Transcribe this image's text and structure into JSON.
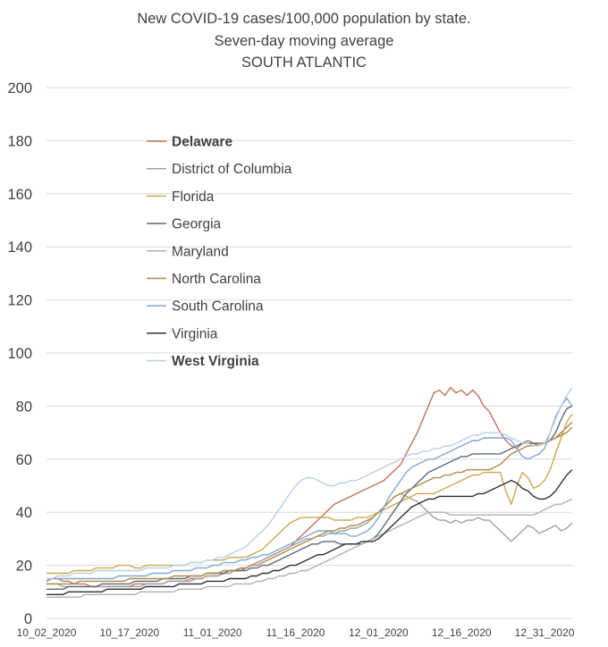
{
  "chart_data": {
    "type": "line",
    "title": "New COVID-19 cases/100,000 population by state.",
    "subtitle": "Seven-day moving average",
    "region": "SOUTH ATLANTIC",
    "xlabel": "",
    "ylabel": "",
    "ylim": [
      0,
      200
    ],
    "yticks": [
      0,
      20,
      40,
      60,
      80,
      100,
      120,
      140,
      160,
      180,
      200
    ],
    "x_tick_labels": [
      "10_02_2020",
      "10_17_2020",
      "11_01_2020",
      "11_16_2020",
      "12_01_2020",
      "12_16_2020",
      "12_31_2020"
    ],
    "x_tick_days": [
      0,
      15,
      30,
      45,
      60,
      75,
      90
    ],
    "x_start": "2020-10-02",
    "x_end": "2021-01-05",
    "grid": "horizontal",
    "legend_placement": "upper-left",
    "series": [
      {
        "name": "Delaware",
        "color": "#c0735a",
        "bold": true,
        "values": [
          14,
          15,
          15,
          14,
          14,
          13,
          13,
          13,
          12,
          12,
          12,
          12,
          12,
          12,
          12,
          12,
          13,
          13,
          13,
          13,
          13,
          13,
          14,
          14,
          14,
          14,
          15,
          15,
          15,
          16,
          16,
          16,
          17,
          17,
          18,
          18,
          19,
          20,
          21,
          22,
          23,
          24,
          25,
          26,
          27,
          29,
          31,
          33,
          35,
          37,
          39,
          41,
          43,
          44,
          45,
          46,
          47,
          48,
          49,
          50,
          51,
          52,
          54,
          56,
          58,
          62,
          66,
          70,
          75,
          80,
          85,
          86,
          84,
          87,
          85,
          86,
          84,
          86,
          84,
          80,
          78,
          74,
          70,
          67,
          65,
          64,
          66,
          67,
          66,
          65,
          66,
          67,
          68,
          70,
          72,
          74
        ]
      },
      {
        "name": "District of Columbia",
        "color": "#a0a0a0",
        "bold": false,
        "values": [
          13,
          13,
          13,
          12,
          12,
          12,
          12,
          12,
          12,
          12,
          12,
          12,
          12,
          12,
          12,
          12,
          12,
          12,
          13,
          13,
          13,
          13,
          14,
          14,
          14,
          14,
          14,
          15,
          15,
          16,
          16,
          16,
          17,
          17,
          18,
          19,
          19,
          20,
          21,
          22,
          23,
          24,
          25,
          26,
          27,
          28,
          29,
          30,
          30,
          31,
          31,
          32,
          32,
          33,
          33,
          34,
          34,
          35,
          36,
          38,
          40,
          42,
          44,
          46,
          47,
          46,
          45,
          44,
          42,
          40,
          38,
          37,
          37,
          36,
          37,
          36,
          37,
          37,
          38,
          37,
          37,
          35,
          33,
          31,
          29,
          31,
          33,
          35,
          34,
          32,
          33,
          34,
          35,
          33,
          34,
          36
        ]
      },
      {
        "name": "Florida",
        "color": "#c9a94a",
        "bold": false,
        "values": [
          17,
          17,
          17,
          17,
          17,
          18,
          18,
          18,
          18,
          19,
          19,
          19,
          19,
          20,
          20,
          20,
          19,
          19,
          20,
          20,
          20,
          20,
          20,
          20,
          20,
          20,
          21,
          21,
          21,
          22,
          22,
          22,
          22,
          23,
          23,
          23,
          23,
          24,
          25,
          26,
          28,
          30,
          32,
          34,
          36,
          37,
          38,
          38,
          38,
          38,
          38,
          38,
          37,
          37,
          37,
          37,
          38,
          38,
          38,
          39,
          40,
          41,
          42,
          43,
          44,
          45,
          46,
          47,
          47,
          47,
          47,
          48,
          49,
          50,
          51,
          52,
          53,
          54,
          54,
          55,
          55,
          55,
          55,
          48,
          43,
          50,
          55,
          53,
          49,
          50,
          52,
          56,
          62,
          68,
          74,
          77
        ]
      },
      {
        "name": "Georgia",
        "color": "#5a6a7a",
        "bold": false,
        "values": [
          11,
          11,
          11,
          11,
          12,
          12,
          12,
          12,
          12,
          12,
          13,
          13,
          13,
          13,
          13,
          13,
          14,
          14,
          14,
          14,
          14,
          15,
          15,
          15,
          15,
          15,
          16,
          16,
          16,
          17,
          17,
          17,
          17,
          18,
          18,
          18,
          18,
          19,
          19,
          20,
          20,
          21,
          22,
          23,
          24,
          25,
          26,
          27,
          28,
          28,
          29,
          29,
          29,
          28,
          28,
          28,
          28,
          28,
          29,
          30,
          32,
          35,
          38,
          41,
          44,
          47,
          49,
          51,
          53,
          55,
          56,
          57,
          58,
          59,
          60,
          61,
          61,
          62,
          62,
          62,
          62,
          62,
          62,
          63,
          64,
          65,
          66,
          66,
          66,
          66,
          66,
          67,
          70,
          75,
          79,
          80
        ]
      },
      {
        "name": "Maryland",
        "color": "#b0b0b0",
        "bold": false,
        "values": [
          8,
          8,
          8,
          8,
          8,
          8,
          8,
          9,
          9,
          9,
          9,
          9,
          9,
          9,
          9,
          9,
          9,
          10,
          10,
          10,
          10,
          10,
          10,
          10,
          11,
          11,
          11,
          11,
          11,
          12,
          12,
          12,
          12,
          12,
          13,
          13,
          13,
          13,
          14,
          14,
          15,
          15,
          16,
          16,
          17,
          17,
          18,
          18,
          19,
          20,
          21,
          22,
          23,
          24,
          25,
          26,
          27,
          28,
          29,
          30,
          31,
          32,
          33,
          34,
          35,
          36,
          37,
          38,
          39,
          40,
          40,
          40,
          40,
          39,
          39,
          39,
          39,
          39,
          39,
          39,
          39,
          39,
          39,
          39,
          39,
          39,
          39,
          39,
          39,
          40,
          41,
          42,
          43,
          43,
          44,
          45
        ]
      },
      {
        "name": "North Carolina",
        "color": "#b08a48",
        "bold": false,
        "values": [
          13,
          13,
          13,
          13,
          13,
          13,
          14,
          14,
          14,
          14,
          14,
          14,
          14,
          14,
          14,
          15,
          15,
          15,
          15,
          15,
          15,
          15,
          15,
          16,
          16,
          16,
          16,
          16,
          16,
          17,
          17,
          17,
          18,
          18,
          18,
          19,
          19,
          20,
          20,
          21,
          22,
          23,
          24,
          25,
          26,
          27,
          28,
          29,
          30,
          31,
          32,
          33,
          33,
          34,
          34,
          35,
          35,
          36,
          37,
          38,
          40,
          42,
          44,
          46,
          47,
          48,
          49,
          50,
          51,
          52,
          53,
          53,
          54,
          54,
          55,
          55,
          56,
          56,
          56,
          56,
          56,
          57,
          58,
          60,
          62,
          63,
          64,
          65,
          65,
          66,
          66,
          67,
          68,
          69,
          70,
          72
        ]
      },
      {
        "name": "South Carolina",
        "color": "#7ea7d2",
        "bold": false,
        "values": [
          15,
          15,
          15,
          15,
          15,
          15,
          15,
          15,
          15,
          15,
          15,
          15,
          15,
          16,
          16,
          16,
          16,
          16,
          16,
          17,
          17,
          17,
          17,
          18,
          18,
          18,
          18,
          19,
          19,
          19,
          20,
          20,
          21,
          21,
          21,
          22,
          22,
          23,
          23,
          24,
          24,
          25,
          26,
          27,
          28,
          29,
          30,
          31,
          32,
          33,
          33,
          33,
          32,
          32,
          32,
          31,
          31,
          32,
          33,
          35,
          38,
          42,
          46,
          49,
          52,
          55,
          57,
          58,
          59,
          60,
          60,
          61,
          62,
          63,
          64,
          65,
          66,
          67,
          67,
          68,
          68,
          68,
          68,
          68,
          67,
          64,
          61,
          60,
          61,
          62,
          64,
          70,
          76,
          80,
          83,
          80
        ]
      },
      {
        "name": "Virginia",
        "color": "#303030",
        "bold": false,
        "values": [
          9,
          9,
          9,
          9,
          10,
          10,
          10,
          10,
          10,
          10,
          10,
          11,
          11,
          11,
          11,
          11,
          11,
          11,
          12,
          12,
          12,
          12,
          12,
          12,
          13,
          13,
          13,
          13,
          13,
          14,
          14,
          14,
          14,
          15,
          15,
          15,
          15,
          16,
          16,
          17,
          17,
          18,
          18,
          19,
          20,
          20,
          21,
          22,
          23,
          24,
          24,
          25,
          26,
          27,
          28,
          28,
          28,
          29,
          29,
          29,
          30,
          32,
          34,
          36,
          38,
          40,
          42,
          43,
          44,
          45,
          45,
          46,
          46,
          46,
          46,
          46,
          46,
          46,
          47,
          47,
          48,
          49,
          50,
          51,
          52,
          51,
          49,
          48,
          46,
          45,
          45,
          46,
          48,
          51,
          54,
          56
        ]
      },
      {
        "name": "West Virginia",
        "color": "#b8cfe6",
        "bold": true,
        "values": [
          15,
          15,
          16,
          16,
          16,
          17,
          17,
          17,
          17,
          18,
          18,
          18,
          18,
          18,
          18,
          18,
          18,
          18,
          19,
          19,
          19,
          19,
          19,
          20,
          20,
          20,
          21,
          21,
          21,
          22,
          22,
          23,
          23,
          24,
          25,
          26,
          27,
          29,
          31,
          33,
          35,
          38,
          41,
          44,
          47,
          50,
          52,
          53,
          53,
          52,
          51,
          50,
          50,
          51,
          51,
          52,
          52,
          53,
          54,
          55,
          56,
          57,
          58,
          59,
          60,
          61,
          62,
          62,
          63,
          63,
          64,
          64,
          65,
          65,
          66,
          67,
          68,
          69,
          69,
          70,
          70,
          70,
          70,
          69,
          68,
          67,
          66,
          66,
          65,
          65,
          66,
          70,
          75,
          80,
          84,
          87
        ]
      }
    ]
  }
}
